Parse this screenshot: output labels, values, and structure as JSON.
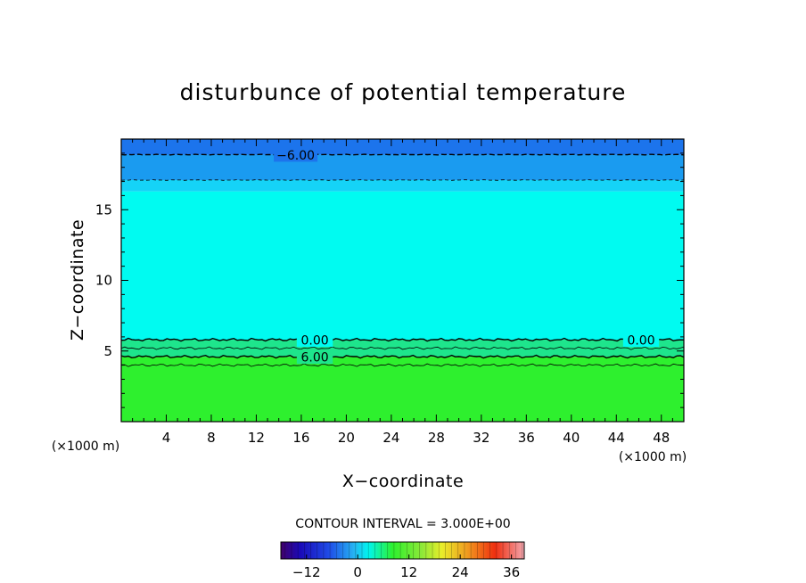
{
  "chart_data": {
    "type": "heatmap",
    "title": "disturbunce of potential temperature",
    "xlabel": "X−coordinate",
    "ylabel": "Z−coordinate",
    "x_unit_left": "(×1000 m)",
    "x_unit_right": "(×1000 m)",
    "xlim": [
      0,
      50
    ],
    "ylim": [
      0,
      20
    ],
    "x_ticks": [
      "4",
      "8",
      "12",
      "16",
      "20",
      "24",
      "28",
      "32",
      "36",
      "40",
      "44",
      "48"
    ],
    "y_ticks": [
      "5",
      "10",
      "15"
    ],
    "contour_interval_text": "CONTOUR INTERVAL = 3.000E+00",
    "contour_interval": 3.0,
    "colorbar": {
      "range": [
        -18,
        39
      ],
      "ticks": [
        "−12",
        "0",
        "12",
        "24",
        "36"
      ]
    },
    "bands": [
      {
        "z_from": 0,
        "z_to": 4.6,
        "value": 6,
        "color": "#2ef02e"
      },
      {
        "z_from": 4.6,
        "z_to": 5.8,
        "value": 3,
        "color": "#1ee58c"
      },
      {
        "z_from": 5.8,
        "z_to": 16.3,
        "value": 0,
        "color": "#00fbf1"
      },
      {
        "z_from": 16.3,
        "z_to": 17.1,
        "value": -3,
        "color": "#15d3f7"
      },
      {
        "z_from": 17.1,
        "z_to": 18.9,
        "value": -4.5,
        "color": "#1a9bf0"
      },
      {
        "z_from": 18.9,
        "z_to": 20,
        "value": -6,
        "color": "#1c74ec"
      }
    ],
    "contours": [
      {
        "level": "-6.00",
        "z": 18.9,
        "dashed": true
      },
      {
        "level": "-3.00",
        "z": 17.1,
        "dashed": true
      },
      {
        "level": "0.00",
        "z": 5.8,
        "dashed": false
      },
      {
        "level": "3.00",
        "z": 5.2,
        "dashed": false
      },
      {
        "level": "6.00",
        "z": 4.6,
        "dashed": false
      },
      {
        "level": "9.00",
        "z": 4.0,
        "dashed": false
      }
    ],
    "contour_labels": [
      {
        "text": "−6.00",
        "x": 15.5,
        "z": 18.9
      },
      {
        "text": "0.00",
        "x": 17.2,
        "z": 5.8
      },
      {
        "text": "0.00",
        "x": 46.2,
        "z": 5.8
      },
      {
        "text": "6.00",
        "x": 17.2,
        "z": 4.6
      }
    ]
  }
}
